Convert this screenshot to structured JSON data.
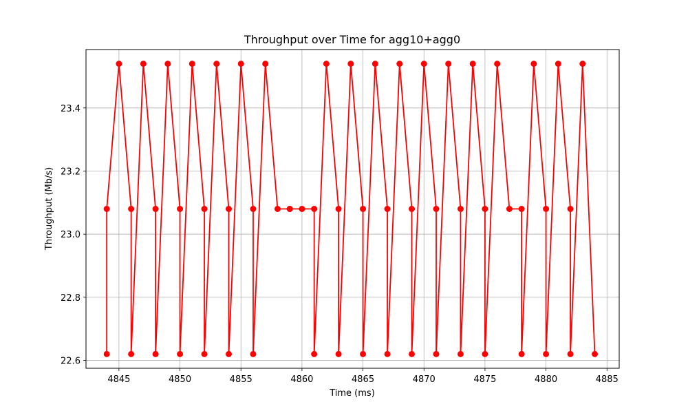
{
  "chart_data": {
    "type": "line",
    "title": "Throughput over Time for agg10+agg0",
    "xlabel": "Time (ms)",
    "ylabel": "Throughput (Mb/s)",
    "xlim": [
      4842.3,
      4886.0
    ],
    "ylim": [
      22.575,
      23.585
    ],
    "x_ticks": [
      4845,
      4850,
      4855,
      4860,
      4865,
      4870,
      4875,
      4880,
      4885
    ],
    "x_tick_labels": [
      "4845",
      "4850",
      "4855",
      "4860",
      "4865",
      "4870",
      "4875",
      "4880",
      "4885"
    ],
    "y_ticks": [
      22.6,
      22.8,
      23.0,
      23.2,
      23.4
    ],
    "y_tick_labels": [
      "22.6",
      "22.8",
      "23.0",
      "23.2",
      "23.4"
    ],
    "grid": true,
    "line_color": "#ff0000",
    "marker": "circle",
    "series": [
      {
        "x": [
          4844,
          4844,
          4845,
          4846,
          4846,
          4847,
          4848,
          4848,
          4849,
          4850,
          4850,
          4851,
          4852,
          4852,
          4853,
          4854,
          4854,
          4855,
          4856,
          4856,
          4857,
          4858,
          4859,
          4859,
          4860,
          4861,
          4861,
          4862,
          4863,
          4863,
          4864,
          4865,
          4865,
          4866,
          4867,
          4867,
          4868,
          4869,
          4869,
          4870,
          4871,
          4871,
          4872,
          4873,
          4873,
          4874,
          4875,
          4875,
          4876,
          4877,
          4878,
          4878,
          4879,
          4880,
          4880,
          4881,
          4882,
          4882,
          4883,
          4884
        ],
        "y": [
          22.62,
          23.08,
          23.54,
          23.08,
          22.62,
          23.54,
          23.08,
          22.62,
          23.54,
          23.08,
          22.62,
          23.54,
          23.08,
          22.62,
          23.54,
          23.08,
          22.62,
          23.54,
          23.08,
          22.62,
          23.54,
          23.08,
          23.08,
          23.08,
          23.08,
          23.08,
          22.62,
          23.54,
          23.08,
          22.62,
          23.54,
          23.08,
          22.62,
          23.54,
          23.08,
          22.62,
          23.54,
          23.08,
          22.62,
          23.54,
          23.08,
          22.62,
          23.54,
          23.08,
          22.62,
          23.54,
          23.08,
          22.62,
          23.54,
          23.08,
          23.08,
          22.62,
          23.54,
          23.08,
          22.62,
          23.54,
          23.08,
          22.62,
          23.54,
          22.62
        ]
      }
    ]
  }
}
